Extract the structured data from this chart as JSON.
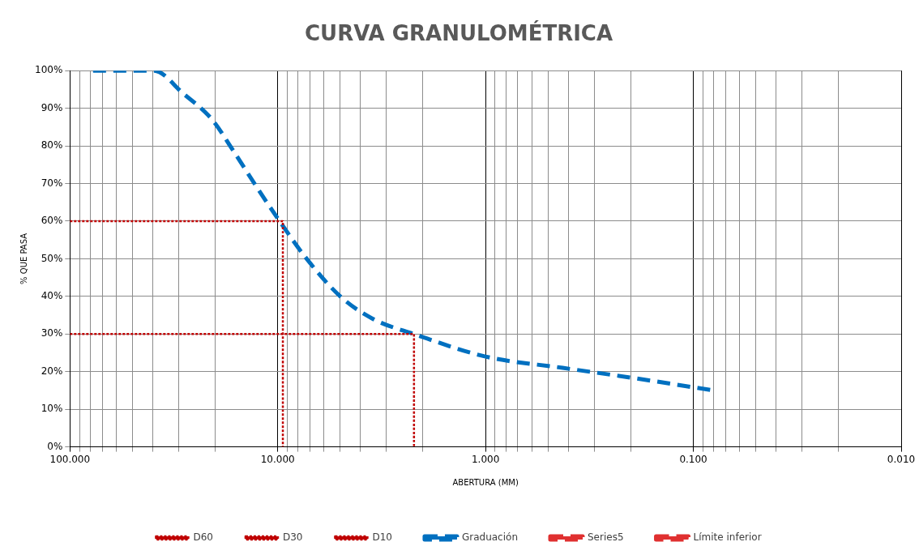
{
  "chart_data": {
    "type": "line",
    "title": "CURVA GRANULOMÉTRICA",
    "xlabel": "ABERTURA (MM)",
    "ylabel": "% QUE PASA",
    "log": "x",
    "xlim": [
      100,
      0.01
    ],
    "xticks": [
      {
        "value": 100,
        "label": "100.000"
      },
      {
        "value": 90,
        "label": null
      },
      {
        "value": 80,
        "label": null
      },
      {
        "value": 70,
        "label": null
      },
      {
        "value": 60,
        "label": null
      },
      {
        "value": 50,
        "label": null
      },
      {
        "value": 40,
        "label": null
      },
      {
        "value": 30,
        "label": null
      },
      {
        "value": 20,
        "label": null
      },
      {
        "value": 10,
        "label": "10.000"
      },
      {
        "value": 9,
        "label": null
      },
      {
        "value": 8,
        "label": null
      },
      {
        "value": 7,
        "label": null
      },
      {
        "value": 6,
        "label": null
      },
      {
        "value": 5,
        "label": null
      },
      {
        "value": 4,
        "label": null
      },
      {
        "value": 3,
        "label": null
      },
      {
        "value": 2,
        "label": null
      },
      {
        "value": 1,
        "label": "1.000"
      },
      {
        "value": 0.9,
        "label": null
      },
      {
        "value": 0.8,
        "label": null
      },
      {
        "value": 0.7,
        "label": null
      },
      {
        "value": 0.6,
        "label": null
      },
      {
        "value": 0.5,
        "label": null
      },
      {
        "value": 0.4,
        "label": null
      },
      {
        "value": 0.3,
        "label": null
      },
      {
        "value": 0.2,
        "label": null
      },
      {
        "value": 0.1,
        "label": "0.100"
      },
      {
        "value": 0.09,
        "label": null
      },
      {
        "value": 0.08,
        "label": null
      },
      {
        "value": 0.07,
        "label": null
      },
      {
        "value": 0.06,
        "label": null
      },
      {
        "value": 0.05,
        "label": null
      },
      {
        "value": 0.04,
        "label": null
      },
      {
        "value": 0.03,
        "label": null
      },
      {
        "value": 0.02,
        "label": null
      },
      {
        "value": 0.01,
        "label": "0.010"
      }
    ],
    "ylim": [
      0,
      100
    ],
    "yticks": [
      {
        "value": 0,
        "label": "0%"
      },
      {
        "value": 10,
        "label": "10%"
      },
      {
        "value": 20,
        "label": "20%"
      },
      {
        "value": 30,
        "label": "30%"
      },
      {
        "value": 40,
        "label": "40%"
      },
      {
        "value": 50,
        "label": "50%"
      },
      {
        "value": 60,
        "label": "60%"
      },
      {
        "value": 70,
        "label": "70%"
      },
      {
        "value": 80,
        "label": "80%"
      },
      {
        "value": 90,
        "label": "90%"
      },
      {
        "value": 100,
        "label": "100%"
      }
    ],
    "grid": true,
    "legend": "bottom",
    "marker": "none",
    "series": [
      {
        "name": "D60",
        "color": "#c00000",
        "line_style": "dotted",
        "x": [
          100,
          9.45,
          9.45
        ],
        "values": [
          60,
          60,
          0
        ]
      },
      {
        "name": "D30",
        "color": "#c00000",
        "line_style": "dotted",
        "x": [
          100,
          2.21,
          2.21
        ],
        "values": [
          30,
          30,
          0
        ]
      },
      {
        "name": "D10",
        "color": "#c00000",
        "line_style": "dotted"
      },
      {
        "name": "Graduación",
        "color": "#0070c0",
        "line_style": "dashed",
        "x": [
          77.4,
          52,
          39.4,
          28.6,
          20.7,
          16.5,
          12.6,
          9.8,
          7.26,
          5.0,
          3.48,
          2.21,
          1.0,
          0.426,
          0.205,
          0.08
        ],
        "values": [
          100,
          100,
          100,
          94,
          87,
          79,
          69,
          60,
          50,
          40,
          34,
          30,
          24,
          21,
          18.5,
          15
        ]
      },
      {
        "name": "Series5",
        "color": "#e03030",
        "line_style": "dashed"
      },
      {
        "name": "Límite inferior",
        "color": "#e03030",
        "line_style": "dashed"
      }
    ]
  }
}
